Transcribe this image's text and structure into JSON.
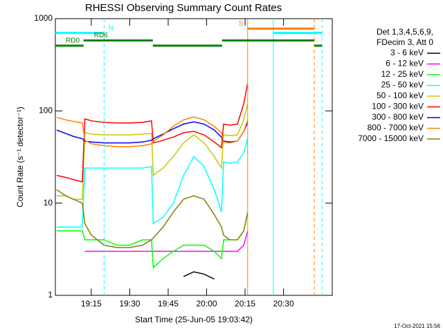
{
  "chart_data": {
    "type": "line",
    "title": "RHESSI Observing Summary Count Rates",
    "x_label": "Start Time (25-Jun-05 19:03:42)",
    "y_label": "Count Rate (s⁻¹ detector⁻¹)",
    "legend_header": [
      "Det 1,3,4,5,6,9,",
      "FDecim 3, Att 0"
    ],
    "footer": "17-Oct-2021 15:56",
    "ylog": true,
    "ylim": [
      1,
      1000
    ],
    "yticks": [
      1,
      10,
      100,
      1000
    ],
    "xlim": [
      1141,
      1249
    ],
    "xticks": [
      {
        "value": 1155,
        "label": "19:15"
      },
      {
        "value": 1170,
        "label": "19:30"
      },
      {
        "value": 1185,
        "label": "19:45"
      },
      {
        "value": 1200,
        "label": "20:00"
      },
      {
        "value": 1215,
        "label": "20:15"
      },
      {
        "value": 1230,
        "label": "20:30"
      }
    ],
    "x": [
      1141.5,
      1145,
      1148,
      1151.5,
      1152.5,
      1155,
      1160,
      1165,
      1170,
      1175,
      1178.5,
      1179.2,
      1183,
      1187,
      1191,
      1195,
      1199,
      1203,
      1205.8,
      1206.6,
      1209,
      1212,
      1214.5,
      1216
    ],
    "series": [
      {
        "name": "3 - 6 keV",
        "color": "#000000",
        "values": [
          null,
          null,
          null,
          null,
          null,
          null,
          null,
          null,
          null,
          null,
          null,
          null,
          null,
          null,
          1.6,
          1.8,
          1.7,
          1.5,
          null,
          null,
          null,
          null,
          null,
          null
        ]
      },
      {
        "name": "6 - 12 keV",
        "color": "#ff00ff",
        "values": [
          null,
          null,
          null,
          null,
          3,
          3,
          3,
          3,
          3,
          3,
          3,
          3,
          3,
          3,
          3,
          3,
          3,
          3,
          3,
          3,
          3,
          3,
          3.5,
          5
        ]
      },
      {
        "name": "12 - 25 keV",
        "color": "#00ff00",
        "values": [
          5,
          5,
          5,
          5,
          4,
          4,
          4,
          3.5,
          3.5,
          4,
          4,
          2,
          2.5,
          3,
          3.5,
          3.5,
          3.5,
          3,
          2.5,
          4,
          4,
          4,
          5,
          8
        ]
      },
      {
        "name": "25 - 50 keV",
        "color": "#00ffff",
        "values": [
          5.5,
          5.5,
          5.5,
          5.5,
          24,
          24,
          24,
          24,
          24,
          24,
          25,
          6,
          7,
          10,
          20,
          32,
          25,
          14,
          8,
          28,
          27,
          28,
          35,
          50
        ]
      },
      {
        "name": "50 - 100 keV",
        "color": "#c8c800",
        "values": [
          12,
          12,
          11,
          11,
          58,
          56,
          55,
          55,
          55,
          56,
          57,
          20,
          24,
          32,
          45,
          55,
          45,
          32,
          24,
          55,
          54,
          55,
          80,
          120
        ]
      },
      {
        "name": "100 - 300 keV",
        "color": "#ff0000",
        "values": [
          20,
          19,
          18,
          17,
          82,
          78,
          75,
          74,
          74,
          75,
          78,
          45,
          48,
          52,
          58,
          60,
          55,
          46,
          40,
          72,
          70,
          72,
          120,
          200
        ]
      },
      {
        "name": "300 - 800 keV",
        "color": "#0000ff",
        "values": [
          62,
          57,
          53,
          50,
          47,
          46,
          45,
          45,
          45,
          46,
          48,
          50,
          56,
          64,
          72,
          76,
          72,
          62,
          52,
          47,
          46,
          47,
          60,
          75
        ]
      },
      {
        "name": "800 - 7000 keV",
        "color": "#ff7f00",
        "values": [
          85,
          80,
          77,
          74,
          48,
          44,
          42,
          41,
          41,
          42,
          44,
          47,
          55,
          68,
          80,
          86,
          80,
          68,
          58,
          46,
          45,
          47,
          60,
          80
        ]
      },
      {
        "name": "7000 - 15000 keV",
        "color": "#808000",
        "values": [
          14,
          12,
          11,
          10,
          6,
          4.5,
          3.5,
          3.3,
          3.3,
          3.5,
          4,
          4.2,
          5.5,
          8,
          11,
          12,
          11,
          7.5,
          5.5,
          4.5,
          4,
          4,
          5,
          8
        ]
      }
    ],
    "flags": [
      {
        "label": "N",
        "color": "#00ffff",
        "value": 700,
        "segments": [
          [
            1141,
            1160
          ],
          [
            1226,
            1245
          ]
        ]
      },
      {
        "label": "S",
        "color": "#ff7f00",
        "value": 780,
        "segments": [
          [
            1216,
            1242
          ]
        ]
      },
      {
        "label": "RD0",
        "color": "#008000",
        "value": 510,
        "segments": [
          [
            1141,
            1152
          ],
          [
            1179,
            1206
          ],
          [
            1242,
            1245
          ]
        ]
      },
      {
        "label": "RD6",
        "color": "#008000",
        "value": 580,
        "segments": [
          [
            1152,
            1179
          ],
          [
            1206,
            1242
          ]
        ]
      }
    ],
    "vlines": [
      {
        "x": 1160,
        "color": "#00ffff",
        "dashed": true
      },
      {
        "x": 1216,
        "color": "#ff7f00",
        "dashed": false
      },
      {
        "x": 1226,
        "color": "#00ffff",
        "dashed": false
      },
      {
        "x": 1242,
        "color": "#ff7f00",
        "dashed": true
      },
      {
        "x": 1245,
        "color": "#00ffff",
        "dashed": true
      }
    ]
  }
}
